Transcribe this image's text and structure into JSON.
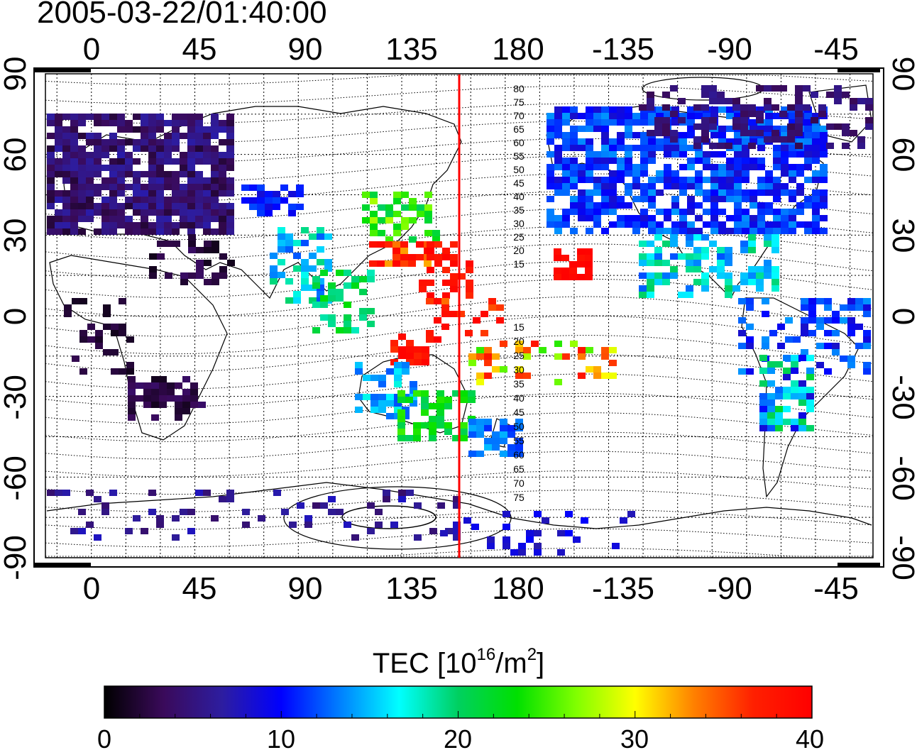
{
  "title": "2005-03-22/01:40:00",
  "map": {
    "top_ticks": [
      "0",
      "45",
      "90",
      "135",
      "180",
      "-135",
      "-90",
      "-45"
    ],
    "bottom_ticks": [
      "0",
      "45",
      "90",
      "135",
      "180",
      "-135",
      "-90",
      "-45"
    ],
    "left_ticks": [
      "90",
      "60",
      "30",
      "0",
      "-30",
      "-60",
      "-90"
    ],
    "right_ticks": [
      "90",
      "60",
      "30",
      "0",
      "-30",
      "-60",
      "-90"
    ],
    "contours_north": [
      "80",
      "75",
      "70",
      "65",
      "60",
      "55",
      "50",
      "45",
      "40",
      "35",
      "30",
      "25",
      "20",
      "15"
    ],
    "contours_south": [
      "15",
      "20",
      "25",
      "30",
      "35",
      "40",
      "45",
      "50",
      "55",
      "60",
      "65",
      "70",
      "75"
    ],
    "meridian_longitude": 155,
    "meridian_color": "#ff0000"
  },
  "colorbar": {
    "label_main": "TEC  [10",
    "label_sup1": "16",
    "label_mid": "/m",
    "label_sup2": "2",
    "label_end": "]",
    "ticks": [
      "0",
      "10",
      "20",
      "30",
      "40"
    ],
    "colors": [
      "#000000",
      "#3a0a5a",
      "#2d1da0",
      "#0000ff",
      "#0080ff",
      "#00ffff",
      "#00d060",
      "#00e000",
      "#80ff00",
      "#ffff00",
      "#ff8000",
      "#ff2000",
      "#ff0000"
    ]
  }
}
